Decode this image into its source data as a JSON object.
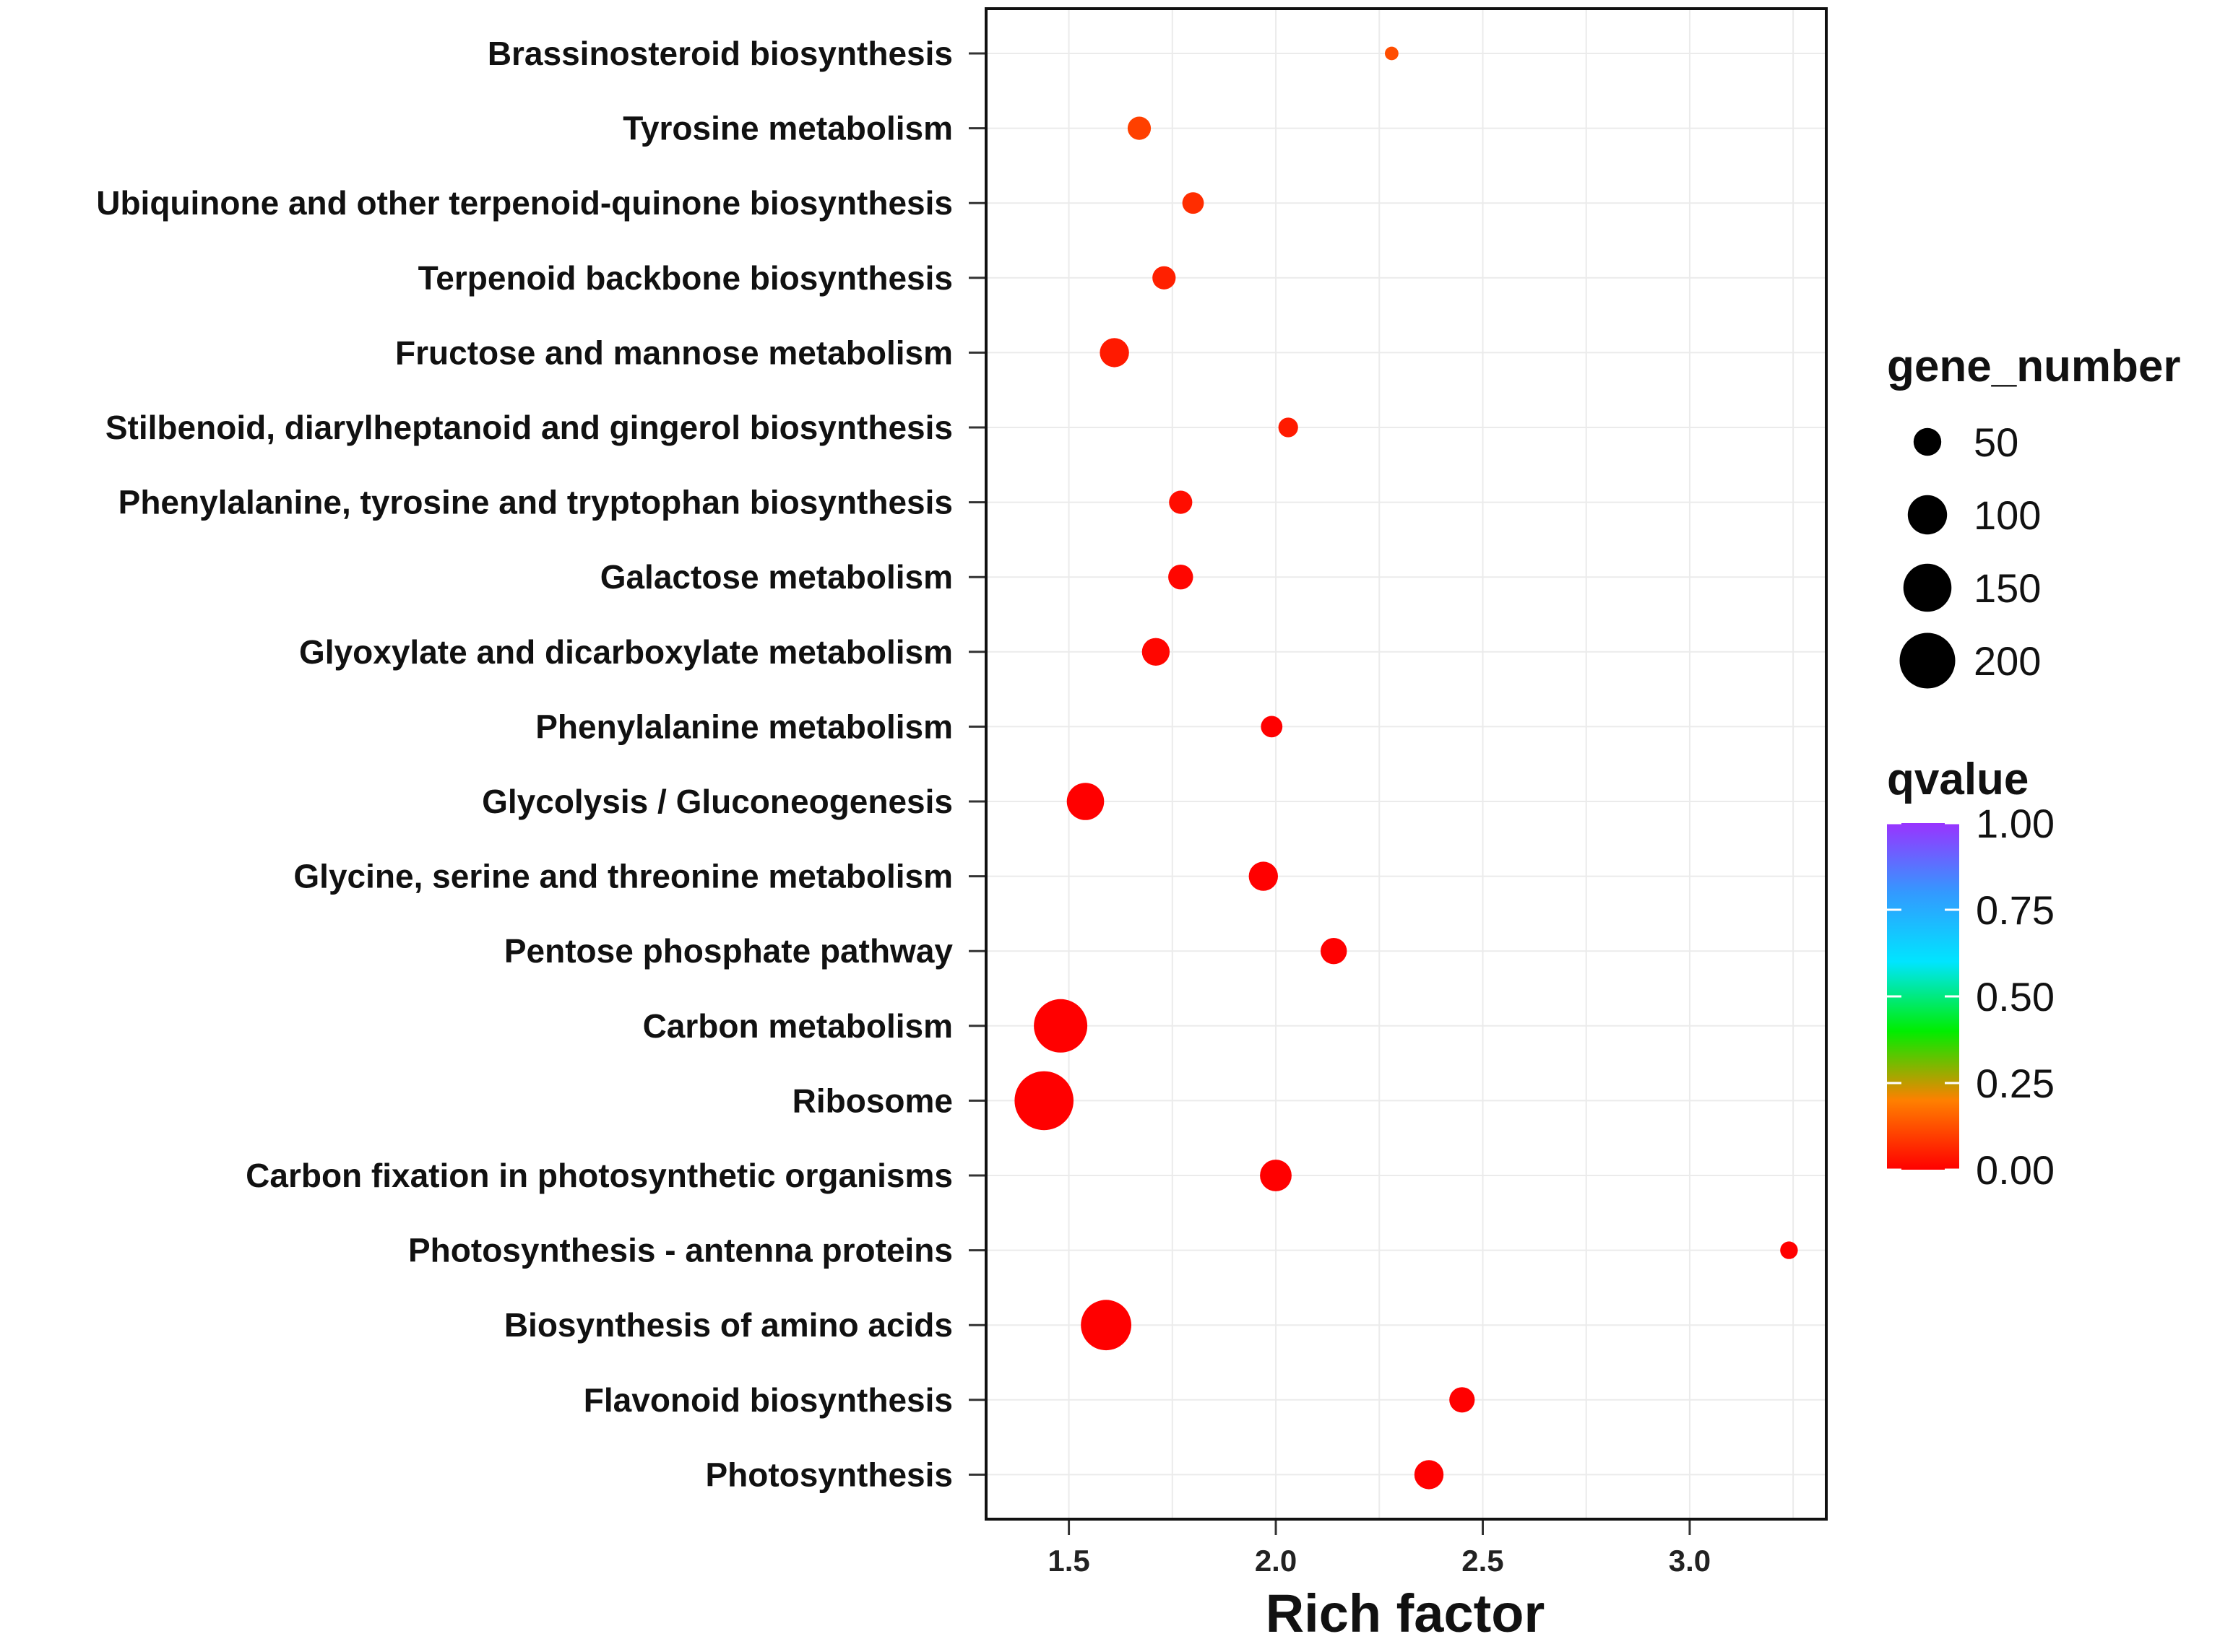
{
  "chart_data": {
    "type": "scatter",
    "title": "",
    "xlabel": "Rich factor",
    "ylabel": "",
    "xlim": [
      1.3,
      3.33
    ],
    "xticks": [
      1.5,
      2.0,
      2.5,
      3.0
    ],
    "xtick_labels": [
      "1.5",
      "2.0",
      "2.5",
      "3.0"
    ],
    "grid": true,
    "categories": [
      "Brassinosteroid biosynthesis",
      "Tyrosine metabolism",
      "Ubiquinone and other terpenoid-quinone biosynthesis",
      "Terpenoid backbone biosynthesis",
      "Fructose and mannose metabolism",
      "Stilbenoid, diarylheptanoid and gingerol biosynthesis",
      "Phenylalanine, tyrosine and tryptophan biosynthesis",
      "Galactose metabolism",
      "Glyoxylate and dicarboxylate metabolism",
      "Phenylalanine metabolism",
      "Glycolysis / Gluconeogenesis",
      "Glycine, serine and threonine metabolism",
      "Pentose phosphate pathway",
      "Carbon metabolism",
      "Ribosome",
      "Carbon fixation in photosynthetic organisms",
      "Photosynthesis - antenna proteins",
      "Biosynthesis of amino acids",
      "Flavonoid biosynthesis",
      "Photosynthesis"
    ],
    "points": [
      {
        "pathway": "Brassinosteroid biosynthesis",
        "rich_factor": 2.28,
        "gene_number": 12,
        "qvalue": 0.12
      },
      {
        "pathway": "Tyrosine metabolism",
        "rich_factor": 1.67,
        "gene_number": 35,
        "qvalue": 0.1
      },
      {
        "pathway": "Ubiquinone and other terpenoid-quinone biosynthesis",
        "rich_factor": 1.8,
        "gene_number": 30,
        "qvalue": 0.07
      },
      {
        "pathway": "Terpenoid backbone biosynthesis",
        "rich_factor": 1.73,
        "gene_number": 35,
        "qvalue": 0.05
      },
      {
        "pathway": "Fructose and mannose metabolism",
        "rich_factor": 1.61,
        "gene_number": 55,
        "qvalue": 0.04
      },
      {
        "pathway": "Stilbenoid, diarylheptanoid and gingerol biosynthesis",
        "rich_factor": 2.03,
        "gene_number": 25,
        "qvalue": 0.04
      },
      {
        "pathway": "Phenylalanine, tyrosine and tryptophan biosynthesis",
        "rich_factor": 1.77,
        "gene_number": 35,
        "qvalue": 0.02
      },
      {
        "pathway": "Galactose metabolism",
        "rich_factor": 1.77,
        "gene_number": 40,
        "qvalue": 0.01
      },
      {
        "pathway": "Glyoxylate and dicarboxylate metabolism",
        "rich_factor": 1.71,
        "gene_number": 50,
        "qvalue": 0.01
      },
      {
        "pathway": "Phenylalanine metabolism",
        "rich_factor": 1.99,
        "gene_number": 30,
        "qvalue": 0.0
      },
      {
        "pathway": "Glycolysis / Gluconeogenesis",
        "rich_factor": 1.54,
        "gene_number": 90,
        "qvalue": 0.0
      },
      {
        "pathway": "Glycine, serine and threonine metabolism",
        "rich_factor": 1.97,
        "gene_number": 55,
        "qvalue": 0.0
      },
      {
        "pathway": "Pentose phosphate pathway",
        "rich_factor": 2.14,
        "gene_number": 45,
        "qvalue": 0.0
      },
      {
        "pathway": "Carbon metabolism",
        "rich_factor": 1.48,
        "gene_number": 185,
        "qvalue": 0.0
      },
      {
        "pathway": "Ribosome",
        "rich_factor": 1.44,
        "gene_number": 225,
        "qvalue": 0.0
      },
      {
        "pathway": "Carbon fixation in photosynthetic organisms",
        "rich_factor": 2.0,
        "gene_number": 65,
        "qvalue": 0.0
      },
      {
        "pathway": "Photosynthesis - antenna proteins",
        "rich_factor": 3.24,
        "gene_number": 20,
        "qvalue": 0.0
      },
      {
        "pathway": "Biosynthesis of amino acids",
        "rich_factor": 1.59,
        "gene_number": 165,
        "qvalue": 0.0
      },
      {
        "pathway": "Flavonoid biosynthesis",
        "rich_factor": 2.45,
        "gene_number": 42,
        "qvalue": 0.0
      },
      {
        "pathway": "Photosynthesis",
        "rich_factor": 2.37,
        "gene_number": 55,
        "qvalue": 0.0
      }
    ],
    "size_legend": {
      "title": "gene_number",
      "values": [
        50,
        100,
        150,
        200
      ],
      "labels": [
        "50",
        "100",
        "150",
        "200"
      ]
    },
    "color_legend": {
      "title": "qvalue",
      "ticks": [
        1.0,
        0.75,
        0.5,
        0.25,
        0.0
      ],
      "labels": [
        "1.00",
        "0.75",
        "0.50",
        "0.25",
        "0.00"
      ],
      "colors": [
        "#ff0000",
        "#ff8000",
        "#00ee00",
        "#00e5ff",
        "#3399ff",
        "#9933ff"
      ]
    },
    "legend_position": "right"
  }
}
